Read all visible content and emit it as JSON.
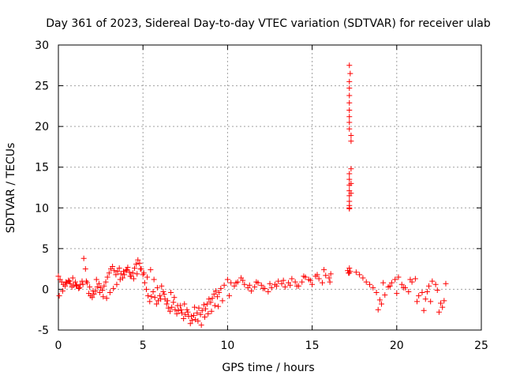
{
  "chart_data": {
    "type": "scatter",
    "title": "Day 361 of 2023, Sidereal Day-to-day VTEC variation (SDTVAR) for receiver ulab",
    "xlabel": "GPS time / hours",
    "ylabel": "SDTVAR / TECUs",
    "xlim": [
      0,
      25
    ],
    "ylim": [
      -5,
      30
    ],
    "xticks": [
      0,
      5,
      10,
      15,
      20,
      25
    ],
    "yticks": [
      -5,
      0,
      5,
      10,
      15,
      20,
      25,
      30
    ],
    "grid": true,
    "marker": "plus",
    "color": "#ff0000",
    "series": [
      {
        "name": "SDTVAR",
        "x": [
          0.0,
          0.1,
          0.2,
          0.3,
          0.4,
          0.5,
          0.6,
          0.7,
          0.8,
          0.9,
          1.0,
          1.1,
          1.2,
          1.3,
          1.4,
          1.5,
          1.6,
          1.7,
          1.8,
          1.9,
          2.0,
          2.1,
          2.2,
          2.3,
          2.4,
          2.5,
          2.6,
          2.7,
          2.8,
          2.9,
          3.0,
          3.1,
          3.2,
          3.3,
          3.4,
          3.5,
          3.6,
          3.7,
          3.8,
          3.9,
          4.0,
          4.1,
          4.2,
          4.3,
          4.4,
          4.5,
          4.6,
          4.7,
          4.8,
          4.9,
          5.0,
          5.1,
          5.2,
          5.3,
          5.4,
          5.5,
          5.6,
          5.7,
          5.8,
          5.9,
          6.0,
          6.1,
          6.2,
          6.3,
          6.4,
          6.5,
          6.6,
          6.7,
          6.8,
          6.9,
          7.0,
          7.1,
          7.2,
          7.3,
          7.4,
          7.5,
          7.6,
          7.7,
          7.8,
          7.9,
          8.0,
          8.1,
          8.2,
          8.3,
          8.4,
          8.5,
          8.6,
          8.7,
          8.8,
          8.9,
          9.0,
          9.1,
          9.2,
          9.3,
          9.4,
          9.5,
          9.6,
          9.8,
          10.0,
          10.2,
          10.4,
          10.6,
          10.8,
          11.0,
          11.2,
          11.4,
          11.6,
          11.8,
          12.0,
          12.2,
          12.4,
          12.6,
          12.8,
          13.0,
          13.2,
          13.4,
          13.6,
          13.8,
          14.0,
          14.2,
          14.4,
          14.6,
          14.8,
          15.0,
          15.2,
          15.4,
          15.6,
          15.8,
          16.0,
          16.1,
          17.1,
          17.2,
          17.25,
          17.15,
          17.2,
          17.2,
          17.25,
          17.2,
          17.2,
          17.2,
          17.2,
          17.2,
          17.2,
          17.2,
          17.2,
          17.3,
          17.3,
          17.3,
          17.2,
          17.2,
          17.2,
          17.2,
          17.2,
          17.2,
          17.2,
          17.2,
          17.2,
          17.3,
          17.3,
          17.6,
          17.8,
          18.0,
          18.2,
          18.4,
          18.6,
          18.8,
          18.9,
          19.0,
          19.1,
          19.3,
          19.5,
          19.7,
          19.9,
          20.1,
          20.3,
          20.5,
          20.7,
          20.9,
          21.1,
          21.3,
          21.5,
          21.7,
          21.9,
          22.1,
          22.3,
          22.5,
          22.7,
          22.8,
          0.05,
          0.25,
          0.45,
          0.65,
          0.85,
          1.05,
          1.25,
          1.45,
          1.65,
          1.85,
          2.05,
          2.25,
          2.45,
          2.65,
          2.85,
          3.05,
          3.25,
          3.45,
          3.65,
          3.85,
          4.05,
          4.25,
          4.45,
          4.65,
          4.85,
          5.05,
          5.25,
          5.45,
          5.65,
          5.85,
          6.05,
          6.25,
          6.45,
          6.65,
          6.85,
          7.05,
          7.25,
          7.45,
          7.65,
          7.85,
          8.05,
          8.25,
          8.45,
          8.65,
          8.85,
          9.05,
          9.25,
          9.45,
          9.7,
          10.1,
          10.5,
          10.9,
          11.3,
          11.7,
          12.1,
          12.5,
          12.9,
          13.3,
          13.7,
          14.1,
          14.5,
          14.9,
          15.3,
          15.7,
          16.05,
          19.2,
          19.6,
          20.0,
          20.4,
          20.8,
          21.2,
          21.6,
          21.8,
          22.0,
          22.4,
          22.6,
          22.9
        ],
        "y": [
          1.6,
          1.2,
          0.9,
          0.6,
          0.4,
          0.8,
          1.1,
          0.7,
          0.3,
          0.5,
          0.9,
          0.4,
          0.1,
          0.6,
          1.0,
          3.8,
          2.5,
          0.8,
          -0.5,
          -0.8,
          -1.0,
          -0.6,
          -0.2,
          0.3,
          0.7,
          0.2,
          -0.1,
          0.4,
          0.9,
          1.5,
          2.0,
          2.5,
          2.8,
          2.3,
          1.8,
          2.2,
          2.6,
          1.9,
          1.4,
          1.8,
          2.3,
          2.7,
          2.1,
          1.6,
          2.0,
          2.6,
          3.1,
          3.6,
          3.2,
          2.5,
          1.8,
          0.8,
          0.0,
          -0.8,
          -1.5,
          -0.9,
          -0.3,
          -1.0,
          -1.8,
          -1.4,
          -0.8,
          0.4,
          -0.3,
          -1.2,
          -1.8,
          -2.3,
          -2.7,
          -2.2,
          -1.6,
          -2.5,
          -3.0,
          -2.6,
          -2.0,
          -2.9,
          -3.6,
          -3.1,
          -2.5,
          -3.3,
          -4.2,
          -3.8,
          -3.2,
          -3.7,
          -2.9,
          -2.3,
          -3.1,
          -2.6,
          -1.9,
          -2.4,
          -1.8,
          -1.2,
          -1.6,
          -1.1,
          -0.6,
          -0.2,
          -0.9,
          -0.4,
          0.1,
          0.5,
          1.2,
          0.8,
          0.4,
          0.9,
          1.4,
          0.6,
          0.2,
          -0.2,
          0.3,
          0.8,
          0.5,
          0.1,
          -0.3,
          0.2,
          0.6,
          1.0,
          0.7,
          0.3,
          0.8,
          1.3,
          0.9,
          0.4,
          0.9,
          1.5,
          1.2,
          0.6,
          1.6,
          1.3,
          0.8,
          1.7,
          1.4,
          1.9,
          2.3,
          2.0,
          2.2,
          2.0,
          2.6,
          27.5,
          26.5,
          25.5,
          24.7,
          23.8,
          22.9,
          22.0,
          21.2,
          20.5,
          19.7,
          18.9,
          18.2,
          14.8,
          14.2,
          13.5,
          12.8,
          12.1,
          11.5,
          10.8,
          10.3,
          10.0,
          9.9,
          13.0,
          11.8,
          2.1,
          1.8,
          1.4,
          0.9,
          0.6,
          0.2,
          -0.4,
          -2.5,
          -1.3,
          -1.8,
          -0.7,
          0.3,
          0.8,
          1.2,
          1.5,
          0.6,
          0.2,
          -0.3,
          0.9,
          1.3,
          -0.8,
          -0.4,
          -1.2,
          0.4,
          1.0,
          0.6,
          -2.8,
          -2.2,
          -1.4,
          -0.8,
          -0.2,
          0.9,
          1.0,
          1.4,
          0.5,
          0.2,
          0.6,
          1.0,
          0.3,
          -0.2,
          1.2,
          -0.4,
          -0.9,
          -1.1,
          -0.4,
          0.1,
          0.6,
          1.2,
          2.2,
          2.4,
          1.6,
          1.3,
          1.9,
          2.5,
          2.0,
          1.5,
          2.4,
          1.2,
          0.2,
          -1.2,
          -0.6,
          -1.4,
          -0.4,
          -1.0,
          -2.0,
          -2.5,
          -1.8,
          -2.8,
          -3.3,
          -2.2,
          -3.9,
          -4.4,
          -3.4,
          -3.0,
          -2.7,
          -2.0,
          -2.1,
          -1.4,
          -0.8,
          0.8,
          1.1,
          0.5,
          0.9,
          0.1,
          0.7,
          0.4,
          1.1,
          0.5,
          0.4,
          1.6,
          1.1,
          1.8,
          2.4,
          0.9,
          0.8,
          0.4,
          -0.5,
          0.2,
          1.2,
          -1.5,
          -2.6,
          -0.3,
          -1.5,
          -0.1,
          -1.7,
          0.7
        ]
      }
    ]
  }
}
